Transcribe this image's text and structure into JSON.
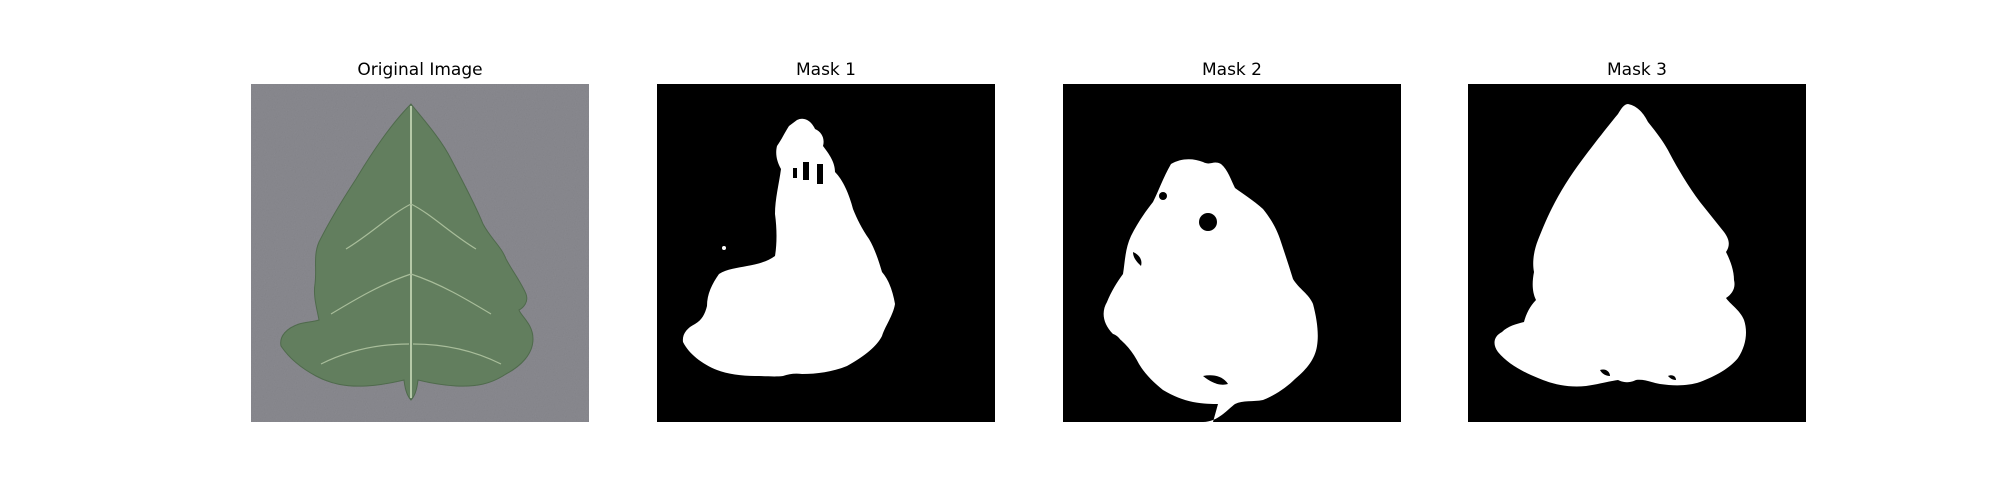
{
  "panels": [
    {
      "title": "Original Image",
      "kind": "photo",
      "subject": "green leaf on gray textured background"
    },
    {
      "title": "Mask 1",
      "kind": "binary-mask"
    },
    {
      "title": "Mask 2",
      "kind": "binary-mask"
    },
    {
      "title": "Mask 3",
      "kind": "binary-mask"
    }
  ],
  "colors": {
    "background": "#ffffff",
    "mask_fg": "#ffffff",
    "mask_bg": "#000000",
    "photo_bg": "#8a8a90",
    "leaf": "#627e5e",
    "leaf_vein": "#b6c9a8"
  }
}
